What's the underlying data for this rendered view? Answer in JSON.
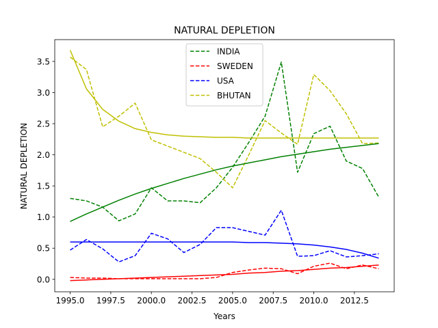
{
  "chart_data": {
    "type": "line",
    "title": "NATURAL DEPLETION",
    "xlabel": "Years",
    "ylabel": "NATURAL DEPLETION",
    "xlim": [
      1994.05,
      2014.95
    ],
    "ylim": [
      -0.2,
      3.85
    ],
    "xticks": [
      1995.0,
      1997.5,
      2000.0,
      2002.5,
      2005.0,
      2007.5,
      2010.0,
      2012.5
    ],
    "xtick_labels": [
      "1995.0",
      "1997.5",
      "2000.0",
      "2002.5",
      "2005.0",
      "2007.5",
      "2010.0",
      "2012.5"
    ],
    "yticks": [
      0.0,
      0.5,
      1.0,
      1.5,
      2.0,
      2.5,
      3.0,
      3.5
    ],
    "ytick_labels": [
      "0.0",
      "0.5",
      "1.0",
      "1.5",
      "2.0",
      "2.5",
      "3.0",
      "3.5"
    ],
    "grid": false,
    "legend_position": "top-center",
    "x": [
      1995,
      1996,
      1997,
      1998,
      1999,
      2000,
      2001,
      2002,
      2003,
      2004,
      2005,
      2006,
      2007,
      2008,
      2009,
      2010,
      2011,
      2012,
      2013,
      2014
    ],
    "series": [
      {
        "name": "INDIA",
        "color": "#008000",
        "style": "dashed",
        "in_legend": true,
        "values": [
          1.3,
          1.26,
          1.16,
          0.94,
          1.05,
          1.47,
          1.26,
          1.26,
          1.23,
          1.47,
          1.8,
          2.2,
          2.62,
          3.49,
          1.72,
          2.34,
          2.46,
          1.9,
          1.78,
          1.32
        ]
      },
      {
        "name": "SWEDEN",
        "color": "#ff0000",
        "style": "dashed",
        "in_legend": true,
        "values": [
          0.03,
          0.02,
          0.02,
          0.01,
          0.01,
          0.01,
          0.01,
          0.01,
          0.01,
          0.03,
          0.11,
          0.15,
          0.18,
          0.17,
          0.09,
          0.21,
          0.26,
          0.17,
          0.23,
          0.17
        ]
      },
      {
        "name": "USA",
        "color": "#0000ff",
        "style": "dashed",
        "in_legend": true,
        "values": [
          0.47,
          0.64,
          0.49,
          0.28,
          0.38,
          0.74,
          0.65,
          0.43,
          0.56,
          0.83,
          0.83,
          0.77,
          0.71,
          1.11,
          0.37,
          0.38,
          0.46,
          0.36,
          0.38,
          0.41
        ]
      },
      {
        "name": "BHUTAN",
        "color": "#bfbf00",
        "style": "dashed",
        "in_legend": true,
        "values": [
          3.57,
          3.37,
          2.45,
          2.62,
          2.83,
          2.24,
          2.14,
          2.04,
          1.94,
          1.72,
          1.47,
          2.0,
          2.55,
          2.35,
          2.17,
          3.29,
          3.03,
          2.66,
          2.18,
          2.19
        ]
      },
      {
        "color": "#008000",
        "style": "solid",
        "in_legend": false,
        "values": [
          0.93,
          1.05,
          1.16,
          1.27,
          1.37,
          1.46,
          1.54,
          1.62,
          1.69,
          1.76,
          1.82,
          1.87,
          1.92,
          1.97,
          2.01,
          2.05,
          2.09,
          2.12,
          2.15,
          2.18
        ]
      },
      {
        "color": "#ff0000",
        "style": "solid",
        "in_legend": false,
        "values": [
          -0.02,
          -0.01,
          0.0,
          0.01,
          0.02,
          0.03,
          0.04,
          0.05,
          0.06,
          0.07,
          0.08,
          0.1,
          0.11,
          0.13,
          0.14,
          0.16,
          0.18,
          0.19,
          0.21,
          0.23
        ]
      },
      {
        "color": "#0000ff",
        "style": "solid",
        "in_legend": false,
        "values": [
          0.6,
          0.6,
          0.6,
          0.6,
          0.6,
          0.6,
          0.6,
          0.6,
          0.6,
          0.6,
          0.6,
          0.59,
          0.59,
          0.58,
          0.57,
          0.55,
          0.52,
          0.48,
          0.42,
          0.34
        ]
      },
      {
        "color": "#bfbf00",
        "style": "solid",
        "in_legend": false,
        "values": [
          3.68,
          3.06,
          2.73,
          2.54,
          2.42,
          2.36,
          2.32,
          2.3,
          2.29,
          2.28,
          2.28,
          2.27,
          2.27,
          2.27,
          2.27,
          2.27,
          2.27,
          2.27,
          2.27,
          2.27
        ]
      }
    ]
  }
}
